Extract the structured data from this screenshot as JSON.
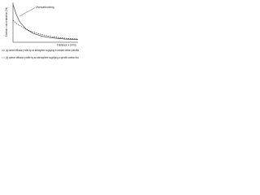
{
  "chart_data": {
    "type": "line",
    "annotation": "Overcarburizing",
    "y_label": "Carbon concentration (%)",
    "x_label": "Distance x (mm)",
    "x": [
      0,
      0.05,
      0.1,
      0.2,
      0.3,
      0.45,
      0.6,
      0.8,
      1.0
    ],
    "xlim": [
      0,
      1
    ],
    "ylim": [
      0,
      1
    ],
    "series": [
      {
        "name": "(a) carbon diffusion profile by an atmosphere supplying a constant carbon potential",
        "color": "#222222",
        "values": [
          0.95,
          0.7,
          0.52,
          0.33,
          0.23,
          0.15,
          0.11,
          0.08,
          0.07
        ]
      },
      {
        "name": "(b) carbon diffusion profile by an atmosphere supplying a specific carbon flux",
        "color": "#222222",
        "values": [
          0.55,
          0.48,
          0.42,
          0.33,
          0.26,
          0.19,
          0.14,
          0.1,
          0.08
        ]
      }
    ]
  }
}
